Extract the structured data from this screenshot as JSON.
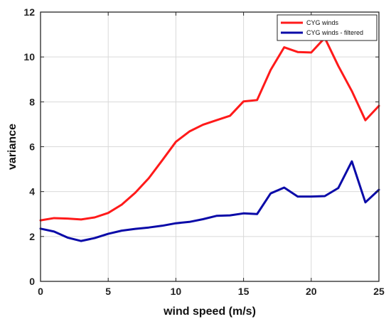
{
  "chart_data": {
    "type": "line",
    "xlabel": "wind speed (m/s)",
    "ylabel": "variance",
    "xlim": [
      0,
      25
    ],
    "ylim": [
      0,
      12
    ],
    "xticks": [
      0,
      5,
      10,
      15,
      20,
      25
    ],
    "yticks": [
      0,
      2,
      4,
      6,
      8,
      10,
      12
    ],
    "grid": true,
    "legend_position": "top-right",
    "x": [
      0,
      1,
      2,
      3,
      4,
      5,
      6,
      7,
      8,
      9,
      10,
      11,
      12,
      13,
      14,
      15,
      16,
      17,
      18,
      19,
      20,
      21,
      22,
      23,
      24,
      25
    ],
    "series": [
      {
        "name": "CYG winds",
        "color": "#ff1a1a",
        "values": [
          2.72,
          2.82,
          2.8,
          2.76,
          2.85,
          3.05,
          3.42,
          3.95,
          4.6,
          5.4,
          6.22,
          6.68,
          6.98,
          7.18,
          7.38,
          8.02,
          8.08,
          9.42,
          10.43,
          10.22,
          10.2,
          10.85,
          9.6,
          8.48,
          7.18,
          7.82
        ]
      },
      {
        "name": "CYG winds - filtered",
        "color": "#0a0aa8",
        "values": [
          2.35,
          2.22,
          1.95,
          1.8,
          1.93,
          2.12,
          2.26,
          2.34,
          2.4,
          2.48,
          2.59,
          2.65,
          2.77,
          2.92,
          2.94,
          3.03,
          3.0,
          3.92,
          4.18,
          3.78,
          3.78,
          3.8,
          4.16,
          5.35,
          3.52,
          4.08
        ]
      }
    ]
  }
}
